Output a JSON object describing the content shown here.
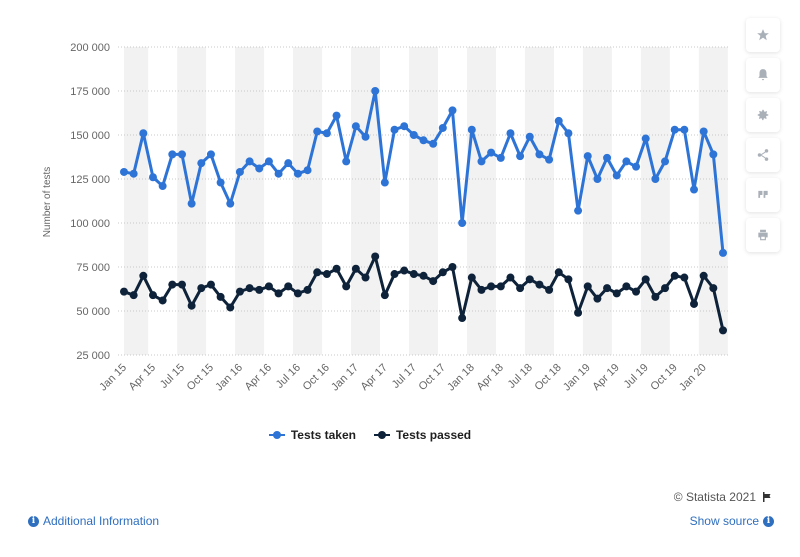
{
  "sidebar": {
    "buttons": [
      {
        "icon": "star-icon"
      },
      {
        "icon": "bell-icon"
      },
      {
        "icon": "gear-icon"
      },
      {
        "icon": "share-icon"
      },
      {
        "icon": "quote-icon"
      },
      {
        "icon": "print-icon"
      }
    ]
  },
  "footer": {
    "credit": "© Statista 2021",
    "additional_info": "Additional Information",
    "show_source": "Show source"
  },
  "colors": {
    "tests_taken": "#2d74d6",
    "tests_passed": "#0e2239",
    "band": "#f2f2f2",
    "grid": "#c8c8c8"
  },
  "chart_data": {
    "type": "line",
    "title": "",
    "xlabel": "",
    "ylabel": "Number of tests",
    "ylim": [
      25000,
      200000
    ],
    "yticks": [
      25000,
      50000,
      75000,
      100000,
      125000,
      150000,
      175000,
      200000
    ],
    "ytick_labels": [
      "25 000",
      "50 000",
      "75 000",
      "100 000",
      "125 000",
      "150 000",
      "175 000",
      "200 000"
    ],
    "x_labels": [
      "Jan 15",
      "Apr 15",
      "Jul 15",
      "Oct 15",
      "Jan 16",
      "Apr 16",
      "Jul 16",
      "Oct 16",
      "Jan 17",
      "Apr 17",
      "Jul 17",
      "Oct 17",
      "Jan 18",
      "Apr 18",
      "Jul 18",
      "Oct 18",
      "Jan 19",
      "Apr 19",
      "Jul 19",
      "Oct 19",
      "Jan 20"
    ],
    "x_start": "Jan 15",
    "x_end": "Mar 20",
    "grid": true,
    "legend_position": "bottom",
    "series": [
      {
        "name": "Tests taken",
        "values": [
          129000,
          128000,
          151000,
          126000,
          121000,
          139000,
          139000,
          111000,
          134000,
          139000,
          123000,
          111000,
          129000,
          135000,
          131000,
          135000,
          128000,
          134000,
          128000,
          130000,
          152000,
          151000,
          161000,
          135000,
          155000,
          149000,
          175000,
          123000,
          153000,
          155000,
          150000,
          147000,
          145000,
          154000,
          164000,
          100000,
          153000,
          135000,
          140000,
          137000,
          151000,
          138000,
          149000,
          139000,
          136000,
          158000,
          151000,
          107000,
          138000,
          125000,
          137000,
          127000,
          135000,
          132000,
          148000,
          125000,
          135000,
          153000,
          153000,
          119000,
          152000,
          139000,
          83000
        ]
      },
      {
        "name": "Tests passed",
        "values": [
          61000,
          59000,
          70000,
          59000,
          56000,
          65000,
          65000,
          53000,
          63000,
          65000,
          58000,
          52000,
          61000,
          63000,
          62000,
          64000,
          60000,
          64000,
          60000,
          62000,
          72000,
          71000,
          74000,
          64000,
          74000,
          69000,
          81000,
          59000,
          71000,
          73000,
          71000,
          70000,
          67000,
          72000,
          75000,
          46000,
          69000,
          62000,
          64000,
          64000,
          69000,
          63000,
          68000,
          65000,
          62000,
          72000,
          68000,
          49000,
          64000,
          57000,
          63000,
          60000,
          64000,
          61000,
          68000,
          58000,
          63000,
          70000,
          69000,
          54000,
          70000,
          63000,
          39000
        ]
      }
    ]
  }
}
